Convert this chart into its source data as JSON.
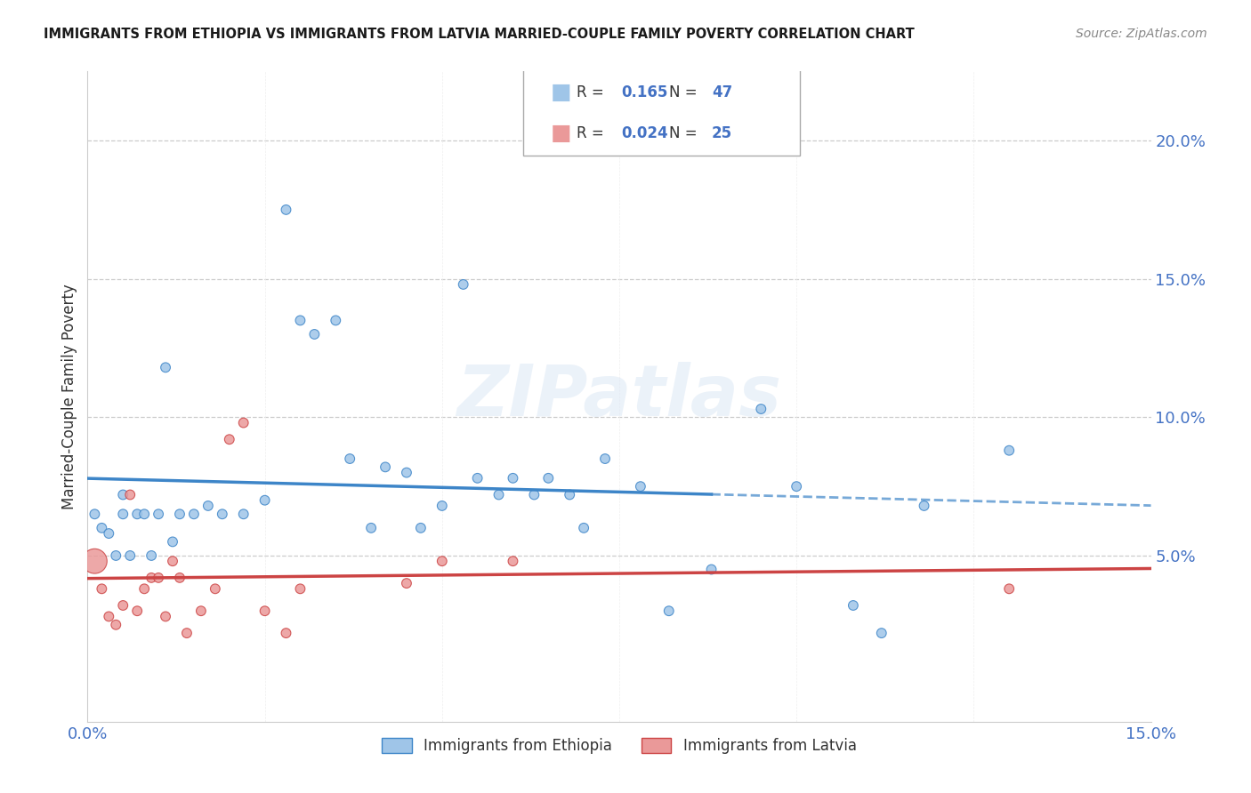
{
  "title": "IMMIGRANTS FROM ETHIOPIA VS IMMIGRANTS FROM LATVIA MARRIED-COUPLE FAMILY POVERTY CORRELATION CHART",
  "source": "Source: ZipAtlas.com",
  "ylabel": "Married-Couple Family Poverty",
  "xlim": [
    0.0,
    0.15
  ],
  "ylim": [
    -0.01,
    0.225
  ],
  "yticks": [
    0.0,
    0.05,
    0.1,
    0.15,
    0.2
  ],
  "ytick_labels": [
    "",
    "5.0%",
    "10.0%",
    "15.0%",
    "20.0%"
  ],
  "xticks": [
    0.0,
    0.025,
    0.05,
    0.075,
    0.1,
    0.125,
    0.15
  ],
  "xtick_labels": [
    "0.0%",
    "",
    "",
    "",
    "",
    "",
    "15.0%"
  ],
  "legend_ethiopia_R": "0.165",
  "legend_ethiopia_N": "47",
  "legend_latvia_R": "0.024",
  "legend_latvia_N": "25",
  "color_ethiopia": "#9fc5e8",
  "color_latvia": "#ea9999",
  "color_ethiopia_line": "#3d85c8",
  "color_latvia_line": "#cc4444",
  "color_axis_labels": "#4472c4",
  "watermark": "ZIPatlas",
  "ethiopia_x": [
    0.001,
    0.002,
    0.003,
    0.004,
    0.005,
    0.005,
    0.006,
    0.007,
    0.008,
    0.009,
    0.01,
    0.011,
    0.012,
    0.013,
    0.015,
    0.017,
    0.019,
    0.022,
    0.025,
    0.028,
    0.03,
    0.032,
    0.035,
    0.037,
    0.04,
    0.042,
    0.045,
    0.047,
    0.05,
    0.053,
    0.055,
    0.058,
    0.06,
    0.063,
    0.065,
    0.068,
    0.07,
    0.073,
    0.078,
    0.082,
    0.088,
    0.095,
    0.1,
    0.108,
    0.112,
    0.118,
    0.13
  ],
  "ethiopia_y": [
    0.065,
    0.06,
    0.058,
    0.05,
    0.065,
    0.072,
    0.05,
    0.065,
    0.065,
    0.05,
    0.065,
    0.118,
    0.055,
    0.065,
    0.065,
    0.068,
    0.065,
    0.065,
    0.07,
    0.175,
    0.135,
    0.13,
    0.135,
    0.085,
    0.06,
    0.082,
    0.08,
    0.06,
    0.068,
    0.148,
    0.078,
    0.072,
    0.078,
    0.072,
    0.078,
    0.072,
    0.06,
    0.085,
    0.075,
    0.03,
    0.045,
    0.103,
    0.075,
    0.032,
    0.022,
    0.068,
    0.088
  ],
  "ethiopia_sizes": [
    60,
    60,
    60,
    60,
    60,
    60,
    60,
    60,
    60,
    60,
    60,
    60,
    60,
    60,
    60,
    60,
    60,
    60,
    60,
    60,
    60,
    60,
    60,
    60,
    60,
    60,
    60,
    60,
    60,
    60,
    60,
    60,
    60,
    60,
    60,
    60,
    60,
    60,
    60,
    60,
    60,
    60,
    60,
    60,
    60,
    60,
    60
  ],
  "latvia_x": [
    0.001,
    0.002,
    0.003,
    0.004,
    0.005,
    0.006,
    0.007,
    0.008,
    0.009,
    0.01,
    0.011,
    0.012,
    0.013,
    0.014,
    0.016,
    0.018,
    0.02,
    0.022,
    0.025,
    0.028,
    0.03,
    0.045,
    0.05,
    0.06,
    0.13
  ],
  "latvia_y": [
    0.048,
    0.038,
    0.028,
    0.025,
    0.032,
    0.072,
    0.03,
    0.038,
    0.042,
    0.042,
    0.028,
    0.048,
    0.042,
    0.022,
    0.03,
    0.038,
    0.092,
    0.098,
    0.03,
    0.022,
    0.038,
    0.04,
    0.048,
    0.048,
    0.038
  ],
  "latvia_sizes": [
    400,
    60,
    60,
    60,
    60,
    60,
    60,
    60,
    60,
    60,
    60,
    60,
    60,
    60,
    60,
    60,
    60,
    60,
    60,
    60,
    60,
    60,
    60,
    60,
    60
  ]
}
